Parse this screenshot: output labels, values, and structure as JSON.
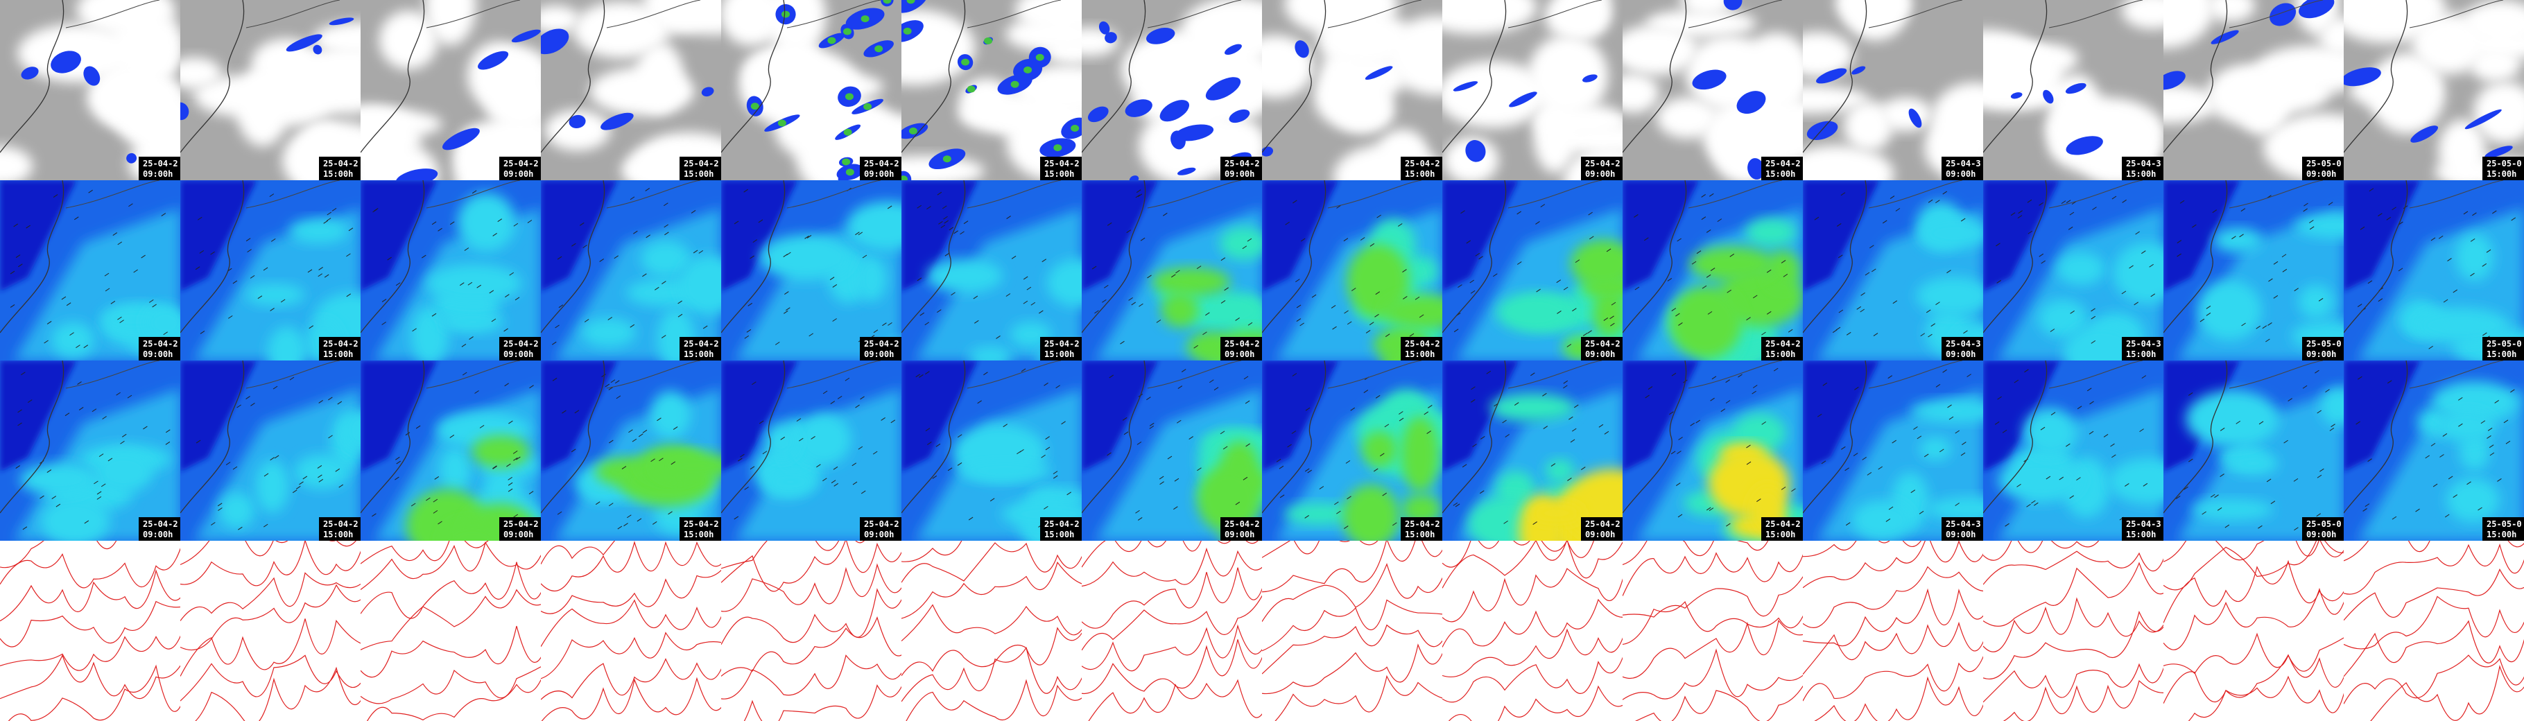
{
  "columns": [
    {
      "date": "25-04-2",
      "time": "09:00h"
    },
    {
      "date": "25-04-2",
      "time": "15:00h"
    },
    {
      "date": "25-04-2",
      "time": "09:00h"
    },
    {
      "date": "25-04-2",
      "time": "15:00h"
    },
    {
      "date": "25-04-2",
      "time": "09:00h"
    },
    {
      "date": "25-04-2",
      "time": "15:00h"
    },
    {
      "date": "25-04-2",
      "time": "09:00h"
    },
    {
      "date": "25-04-2",
      "time": "15:00h"
    },
    {
      "date": "25-04-2",
      "time": "09:00h"
    },
    {
      "date": "25-04-2",
      "time": "15:00h"
    },
    {
      "date": "25-04-3",
      "time": "09:00h"
    },
    {
      "date": "25-04-3",
      "time": "15:00h"
    },
    {
      "date": "25-05-0",
      "time": "09:00h"
    },
    {
      "date": "25-05-0",
      "time": "15:00h"
    }
  ]
}
